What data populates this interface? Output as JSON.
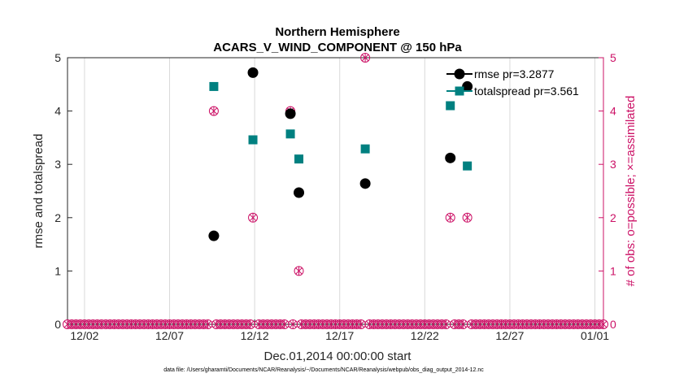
{
  "chart_data": {
    "type": "scatter",
    "title": [
      "Northern Hemisphere",
      "ACARS_V_WIND_COMPONENT @ 150 hPa"
    ],
    "xlabel": "Dec.01,2014 00:00:00 start",
    "ylabel_left": "rmse and totalspread",
    "ylabel_right": "# of obs: o=possible; ×=assimilated",
    "footnote": "data file: /Users/gharamti/Documents/NCAR/Reanalysis/~/Documents/NCAR/Reanalysis/webpub/obs_diag_output_2014-12.nc",
    "xlim": [
      0,
      31.5
    ],
    "ylim_left": [
      0,
      5
    ],
    "ylim_right": [
      0,
      5
    ],
    "x_ticks": [
      1,
      6,
      11,
      16,
      21,
      26,
      31
    ],
    "x_tick_labels": [
      "12/02",
      "12/07",
      "12/12",
      "12/17",
      "12/22",
      "12/27",
      "01/01"
    ],
    "y_ticks": [
      0,
      1,
      2,
      3,
      4,
      5
    ],
    "y_tick_labels": [
      "0",
      "1",
      "2",
      "3",
      "4",
      "5"
    ],
    "colors": {
      "rmse": "#000000",
      "spread": "#008080",
      "obs": "#cc1166",
      "axis": "#262626",
      "grid": "#d9d9d9"
    },
    "series": [
      {
        "name": "rmse",
        "legend": "rmse pr=3.2877",
        "x": [
          8.6,
          10.9,
          13.1,
          13.6,
          17.5,
          22.5,
          23.5
        ],
        "values": [
          1.66,
          4.72,
          3.95,
          2.47,
          2.64,
          3.12,
          4.46
        ]
      },
      {
        "name": "totalspread",
        "legend": "totalspread pr=3.561",
        "x": [
          8.6,
          10.9,
          13.1,
          13.6,
          17.5,
          22.5,
          23.5
        ],
        "values": [
          4.46,
          3.46,
          3.57,
          3.1,
          3.29,
          4.1,
          2.97
        ]
      },
      {
        "name": "obs",
        "legend": "",
        "x": [
          8.6,
          10.9,
          13.1,
          13.6,
          17.5,
          22.5,
          23.5
        ],
        "possible": [
          4,
          2,
          4,
          1,
          5,
          2,
          2
        ],
        "assimilated": [
          4,
          2,
          4,
          1,
          5,
          2,
          2
        ]
      }
    ],
    "zero_obs_step": 0.25
  }
}
